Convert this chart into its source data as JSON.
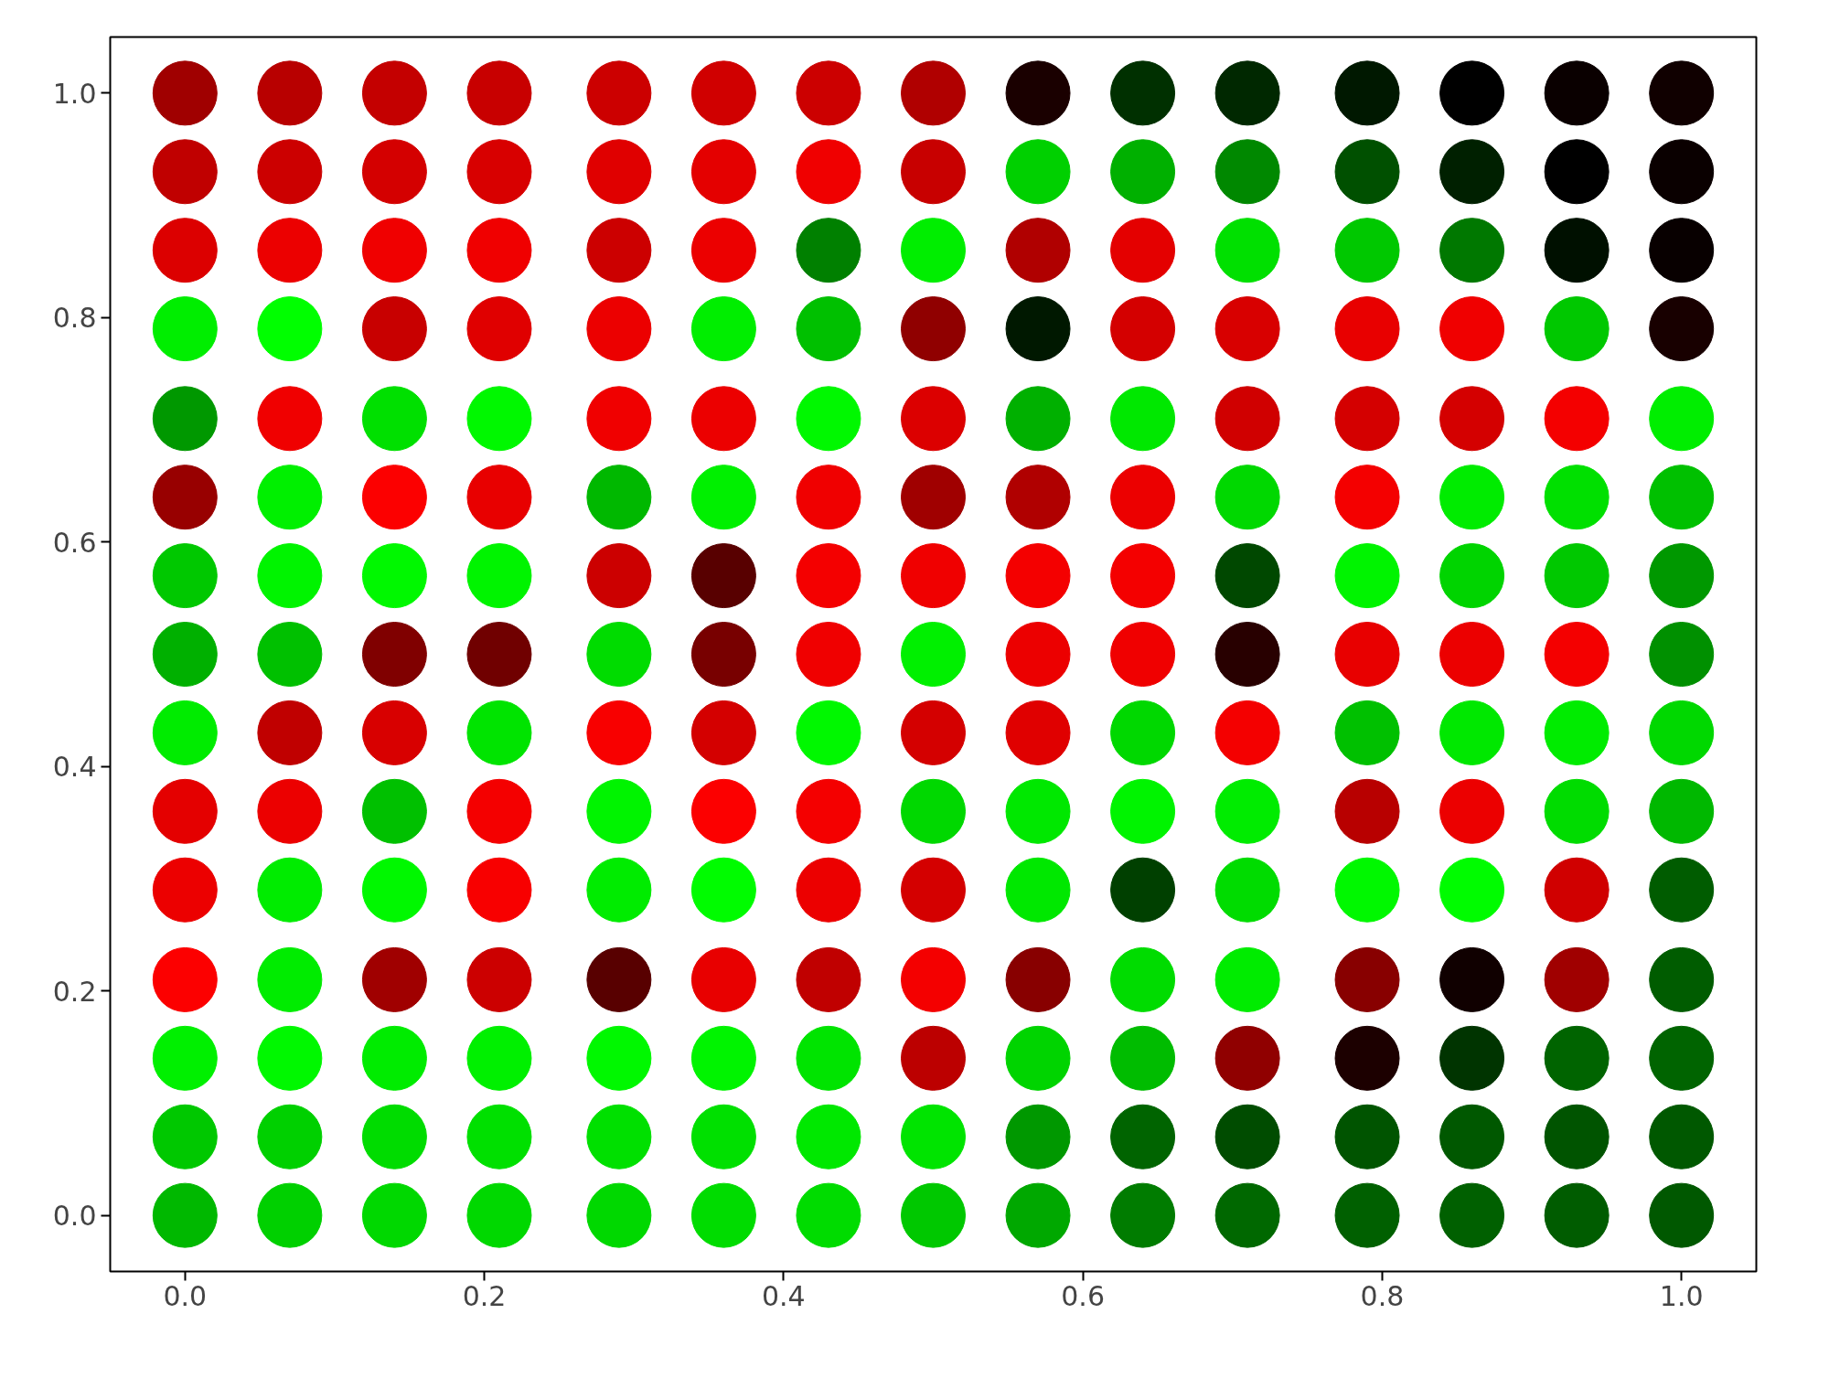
{
  "chart_data": {
    "type": "scatter",
    "marker": "circle",
    "grid": false,
    "xlim": [
      -0.05,
      1.05
    ],
    "ylim": [
      -0.05,
      1.05
    ],
    "xticks": [
      {
        "value": 0,
        "label": "0.0"
      },
      {
        "value": 0.2,
        "label": "0.2"
      },
      {
        "value": 0.4,
        "label": "0.4"
      },
      {
        "value": 0.6,
        "label": "0.6"
      },
      {
        "value": 0.8,
        "label": "0.8"
      },
      {
        "value": 1,
        "label": "1.0"
      }
    ],
    "yticks": [
      {
        "value": 0,
        "label": "0.0"
      },
      {
        "value": 0.2,
        "label": "0.2"
      },
      {
        "value": 0.4,
        "label": "0.4"
      },
      {
        "value": 0.6,
        "label": "0.6"
      },
      {
        "value": 0.8,
        "label": "0.8"
      },
      {
        "value": 1,
        "label": "1.0"
      }
    ],
    "series": [
      {
        "x": [
          0,
          0.07,
          0.14,
          0.21,
          0.29,
          0.36,
          0.43,
          0.5,
          0.57,
          0.64,
          0.71,
          0.79,
          0.86,
          0.93,
          1
        ],
        "values": [
          1,
          1,
          1,
          1,
          1,
          1,
          1,
          1,
          1,
          1,
          1,
          1,
          1,
          1,
          1
        ],
        "colors": [
          "#a00000",
          "#b80000",
          "#c40000",
          "#c80000",
          "#cc0000",
          "#d00000",
          "#cc0000",
          "#b00000",
          "#1a0000",
          "#003000",
          "#002800",
          "#001800",
          "#000000",
          "#0a0000",
          "#100000"
        ]
      },
      {
        "x": [
          0,
          0.07,
          0.14,
          0.21,
          0.29,
          0.36,
          0.43,
          0.5,
          0.57,
          0.64,
          0.71,
          0.79,
          0.86,
          0.93,
          1
        ],
        "values": [
          0.93,
          0.93,
          0.93,
          0.93,
          0.93,
          0.93,
          0.93,
          0.93,
          0.93,
          0.93,
          0.93,
          0.93,
          0.93,
          0.93,
          0.93
        ],
        "colors": [
          "#c00000",
          "#cc0000",
          "#d40000",
          "#d80000",
          "#e00000",
          "#e40000",
          "#f00000",
          "#c80000",
          "#00d000",
          "#00b000",
          "#008800",
          "#005000",
          "#002000",
          "#000000",
          "#0a0000"
        ]
      },
      {
        "x": [
          0,
          0.07,
          0.14,
          0.21,
          0.29,
          0.36,
          0.43,
          0.5,
          0.57,
          0.64,
          0.71,
          0.79,
          0.86,
          0.93,
          1
        ],
        "values": [
          0.86,
          0.86,
          0.86,
          0.86,
          0.86,
          0.86,
          0.86,
          0.86,
          0.86,
          0.86,
          0.86,
          0.86,
          0.86,
          0.86,
          0.86
        ],
        "colors": [
          "#dc0000",
          "#ec0000",
          "#f00000",
          "#f00000",
          "#cc0000",
          "#ec0000",
          "#008000",
          "#00ee00",
          "#b00000",
          "#e40000",
          "#00e000",
          "#00c800",
          "#007800",
          "#001000",
          "#080000"
        ]
      },
      {
        "x": [
          0,
          0.07,
          0.14,
          0.21,
          0.29,
          0.36,
          0.43,
          0.5,
          0.57,
          0.64,
          0.71,
          0.79,
          0.86,
          0.93,
          1
        ],
        "values": [
          0.79,
          0.79,
          0.79,
          0.79,
          0.79,
          0.79,
          0.79,
          0.79,
          0.79,
          0.79,
          0.79,
          0.79,
          0.79,
          0.79,
          0.79
        ],
        "colors": [
          "#00ee00",
          "#00ff00",
          "#c80000",
          "#e00000",
          "#ec0000",
          "#00ee00",
          "#00c000",
          "#900000",
          "#001800",
          "#d40000",
          "#d80000",
          "#e80000",
          "#f00000",
          "#00c800",
          "#180000"
        ]
      },
      {
        "x": [
          0,
          0.07,
          0.14,
          0.21,
          0.29,
          0.36,
          0.43,
          0.5,
          0.57,
          0.64,
          0.71,
          0.79,
          0.86,
          0.93,
          1
        ],
        "values": [
          0.71,
          0.71,
          0.71,
          0.71,
          0.71,
          0.71,
          0.71,
          0.71,
          0.71,
          0.71,
          0.71,
          0.71,
          0.71,
          0.71,
          0.71
        ],
        "colors": [
          "#009800",
          "#f00000",
          "#00e000",
          "#00f800",
          "#f00000",
          "#ec0000",
          "#00f800",
          "#dc0000",
          "#00b000",
          "#00e800",
          "#d00000",
          "#d40000",
          "#d40000",
          "#f40000",
          "#00ee00"
        ]
      },
      {
        "x": [
          0,
          0.07,
          0.14,
          0.21,
          0.29,
          0.36,
          0.43,
          0.5,
          0.57,
          0.64,
          0.71,
          0.79,
          0.86,
          0.93,
          1
        ],
        "values": [
          0.64,
          0.64,
          0.64,
          0.64,
          0.64,
          0.64,
          0.64,
          0.64,
          0.64,
          0.64,
          0.64,
          0.64,
          0.64,
          0.64,
          0.64
        ],
        "colors": [
          "#980000",
          "#00f000",
          "#fc0000",
          "#e80000",
          "#00b800",
          "#00f000",
          "#f00000",
          "#a00000",
          "#b00000",
          "#ec0000",
          "#00d800",
          "#f40000",
          "#00ec00",
          "#00e000",
          "#00c000"
        ]
      },
      {
        "x": [
          0,
          0.07,
          0.14,
          0.21,
          0.29,
          0.36,
          0.43,
          0.5,
          0.57,
          0.64,
          0.71,
          0.79,
          0.86,
          0.93,
          1
        ],
        "values": [
          0.57,
          0.57,
          0.57,
          0.57,
          0.57,
          0.57,
          0.57,
          0.57,
          0.57,
          0.57,
          0.57,
          0.57,
          0.57,
          0.57,
          0.57
        ],
        "colors": [
          "#00c800",
          "#00f400",
          "#00f800",
          "#00f400",
          "#cc0000",
          "#580000",
          "#f40000",
          "#f00000",
          "#f40000",
          "#f40000",
          "#004800",
          "#00f400",
          "#00d400",
          "#00c800",
          "#009800"
        ]
      },
      {
        "x": [
          0,
          0.07,
          0.14,
          0.21,
          0.29,
          0.36,
          0.43,
          0.5,
          0.57,
          0.64,
          0.71,
          0.79,
          0.86,
          0.93,
          1
        ],
        "values": [
          0.5,
          0.5,
          0.5,
          0.5,
          0.5,
          0.5,
          0.5,
          0.5,
          0.5,
          0.5,
          0.5,
          0.5,
          0.5,
          0.5,
          0.5
        ],
        "colors": [
          "#00b000",
          "#00c000",
          "#800000",
          "#700000",
          "#00dc00",
          "#780000",
          "#f00000",
          "#00f000",
          "#ec0000",
          "#f00000",
          "#280000",
          "#e80000",
          "#ec0000",
          "#f40000",
          "#009000"
        ]
      },
      {
        "x": [
          0,
          0.07,
          0.14,
          0.21,
          0.29,
          0.36,
          0.43,
          0.5,
          0.57,
          0.64,
          0.71,
          0.79,
          0.86,
          0.93,
          1
        ],
        "values": [
          0.43,
          0.43,
          0.43,
          0.43,
          0.43,
          0.43,
          0.43,
          0.43,
          0.43,
          0.43,
          0.43,
          0.43,
          0.43,
          0.43,
          0.43
        ],
        "colors": [
          "#00ec00",
          "#c00000",
          "#d80000",
          "#00e400",
          "#f80000",
          "#d40000",
          "#00f800",
          "#d40000",
          "#e00000",
          "#00d800",
          "#f40000",
          "#00c000",
          "#00e800",
          "#00ec00",
          "#00d800"
        ]
      },
      {
        "x": [
          0,
          0.07,
          0.14,
          0.21,
          0.29,
          0.36,
          0.43,
          0.5,
          0.57,
          0.64,
          0.71,
          0.79,
          0.86,
          0.93,
          1
        ],
        "values": [
          0.36,
          0.36,
          0.36,
          0.36,
          0.36,
          0.36,
          0.36,
          0.36,
          0.36,
          0.36,
          0.36,
          0.36,
          0.36,
          0.36,
          0.36
        ],
        "colors": [
          "#e40000",
          "#ec0000",
          "#00c000",
          "#f40000",
          "#00f400",
          "#fc0000",
          "#f40000",
          "#00d800",
          "#00e800",
          "#00f400",
          "#00ec00",
          "#b80000",
          "#ec0000",
          "#00dc00",
          "#00b800"
        ]
      },
      {
        "x": [
          0,
          0.07,
          0.14,
          0.21,
          0.29,
          0.36,
          0.43,
          0.5,
          0.57,
          0.64,
          0.71,
          0.79,
          0.86,
          0.93,
          1
        ],
        "values": [
          0.29,
          0.29,
          0.29,
          0.29,
          0.29,
          0.29,
          0.29,
          0.29,
          0.29,
          0.29,
          0.29,
          0.29,
          0.29,
          0.29,
          0.29
        ],
        "colors": [
          "#ec0000",
          "#00ec00",
          "#00f800",
          "#f80000",
          "#00ec00",
          "#00fc00",
          "#ec0000",
          "#d40000",
          "#00e800",
          "#004000",
          "#00dc00",
          "#00f800",
          "#00fc00",
          "#d00000",
          "#005c00"
        ]
      },
      {
        "x": [
          0,
          0.07,
          0.14,
          0.21,
          0.29,
          0.36,
          0.43,
          0.5,
          0.57,
          0.64,
          0.71,
          0.79,
          0.86,
          0.93,
          1
        ],
        "values": [
          0.21,
          0.21,
          0.21,
          0.21,
          0.21,
          0.21,
          0.21,
          0.21,
          0.21,
          0.21,
          0.21,
          0.21,
          0.21,
          0.21,
          0.21
        ],
        "colors": [
          "#fc0000",
          "#00ec00",
          "#a00000",
          "#cc0000",
          "#580000",
          "#e80000",
          "#c00000",
          "#f40000",
          "#880000",
          "#00dc00",
          "#00ec00",
          "#880000",
          "#100000",
          "#a00000",
          "#005c00"
        ]
      },
      {
        "x": [
          0,
          0.07,
          0.14,
          0.21,
          0.29,
          0.36,
          0.43,
          0.5,
          0.57,
          0.64,
          0.71,
          0.79,
          0.86,
          0.93,
          1
        ],
        "values": [
          0.14,
          0.14,
          0.14,
          0.14,
          0.14,
          0.14,
          0.14,
          0.14,
          0.14,
          0.14,
          0.14,
          0.14,
          0.14,
          0.14,
          0.14
        ],
        "colors": [
          "#00f000",
          "#00f800",
          "#00ec00",
          "#00f000",
          "#00f800",
          "#00f400",
          "#00e400",
          "#bc0000",
          "#00d400",
          "#00bc00",
          "#900000",
          "#1c0000",
          "#003400",
          "#006400",
          "#006400"
        ]
      },
      {
        "x": [
          0,
          0.07,
          0.14,
          0.21,
          0.29,
          0.36,
          0.43,
          0.5,
          0.57,
          0.64,
          0.71,
          0.79,
          0.86,
          0.93,
          1
        ],
        "values": [
          0.07,
          0.07,
          0.07,
          0.07,
          0.07,
          0.07,
          0.07,
          0.07,
          0.07,
          0.07,
          0.07,
          0.07,
          0.07,
          0.07,
          0.07
        ],
        "colors": [
          "#00c800",
          "#00d000",
          "#00dc00",
          "#00e000",
          "#00e000",
          "#00e000",
          "#00e800",
          "#00e400",
          "#009800",
          "#006400",
          "#004c00",
          "#005400",
          "#005800",
          "#005400",
          "#005800"
        ]
      },
      {
        "x": [
          0,
          0.07,
          0.14,
          0.21,
          0.29,
          0.36,
          0.43,
          0.5,
          0.57,
          0.64,
          0.71,
          0.79,
          0.86,
          0.93,
          1
        ],
        "values": [
          0,
          0,
          0,
          0,
          0,
          0,
          0,
          0,
          0,
          0,
          0,
          0,
          0,
          0,
          0
        ],
        "colors": [
          "#00b800",
          "#00d000",
          "#00d800",
          "#00d800",
          "#00d800",
          "#00dc00",
          "#00dc00",
          "#00c800",
          "#00a800",
          "#007c00",
          "#006800",
          "#006000",
          "#006000",
          "#005c00",
          "#005800"
        ]
      }
    ]
  }
}
